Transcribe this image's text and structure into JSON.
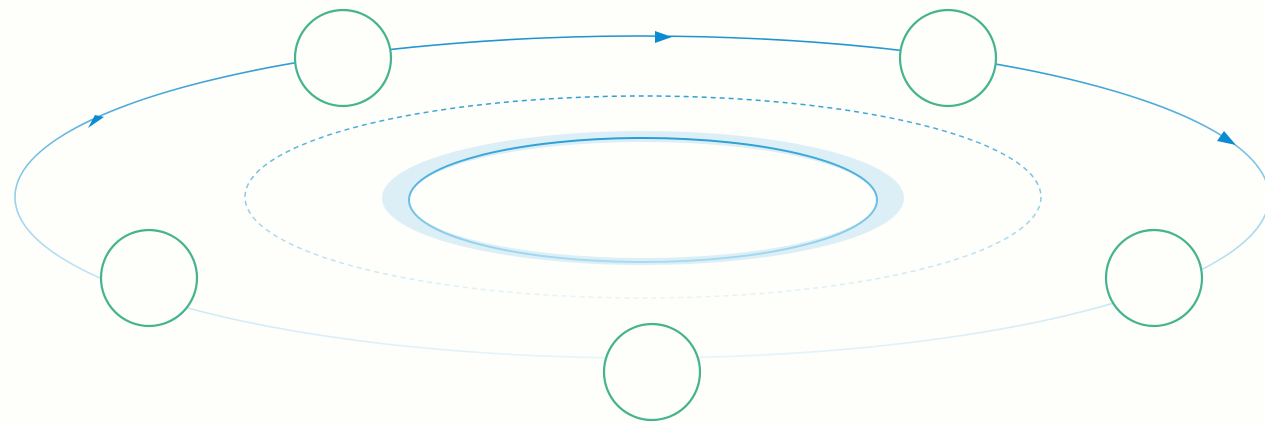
{
  "diagram": {
    "type": "orbit-cycle",
    "direction": "clockwise",
    "colors": {
      "background": "#fefefb",
      "orbit_stroke": "#1a93cf",
      "orbit_fade": "#e6f4fb",
      "arrow_fill": "#0b8bd0",
      "dashed_ring": "#2e9fd4",
      "core_halo": "#dceff6",
      "core_ring": "#2a9fd6",
      "node_stroke": "#45b38f",
      "node_fill": "#fefefb"
    },
    "nodes": [
      {
        "id": "node-top-left",
        "label": ""
      },
      {
        "id": "node-top-right",
        "label": ""
      },
      {
        "id": "node-middle-right",
        "label": ""
      },
      {
        "id": "node-bottom-center",
        "label": ""
      },
      {
        "id": "node-middle-left",
        "label": ""
      }
    ],
    "arrows": [
      {
        "id": "arrow-top",
        "icon": "triangle-arrow-icon"
      },
      {
        "id": "arrow-right",
        "icon": "triangle-arrow-icon"
      },
      {
        "id": "arrow-left",
        "icon": "triangle-arrow-icon"
      }
    ]
  }
}
